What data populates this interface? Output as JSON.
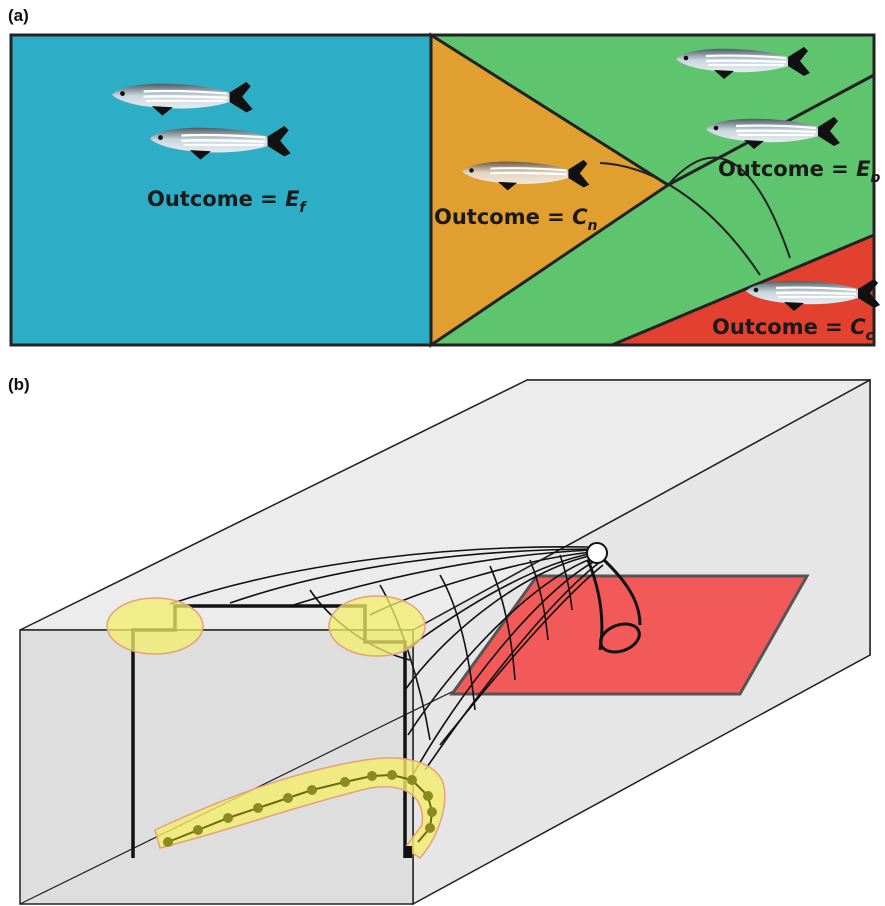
{
  "panels": {
    "a": {
      "label": "(a)",
      "zones": {
        "free": {
          "color": "#2eadc7",
          "outcome_prefix": "Outcome = ",
          "var": "E",
          "sub": "f"
        },
        "net": {
          "color": "#e09f2e",
          "outcome_prefix": "Outcome = ",
          "var": "C",
          "sub": "n"
        },
        "bypass": {
          "color": "#5fc46e",
          "outcome_prefix": "Outcome = ",
          "var": "E",
          "sub": "b"
        },
        "codend": {
          "color": "#e2412f",
          "outcome_prefix": "Outcome = ",
          "var": "C",
          "sub": "c"
        }
      },
      "fish_icon": "zebrafish-icon"
    },
    "b": {
      "label": "(b)",
      "colors": {
        "box_fill": "#e2e2e2",
        "codend_plate": "#f25a5a",
        "highlight": "#f2ee6a",
        "trajectory_dot": "#8a8a20"
      },
      "icons": [
        "trawl-net-icon",
        "cod-end-icon",
        "fish-trajectory-icon"
      ]
    }
  }
}
